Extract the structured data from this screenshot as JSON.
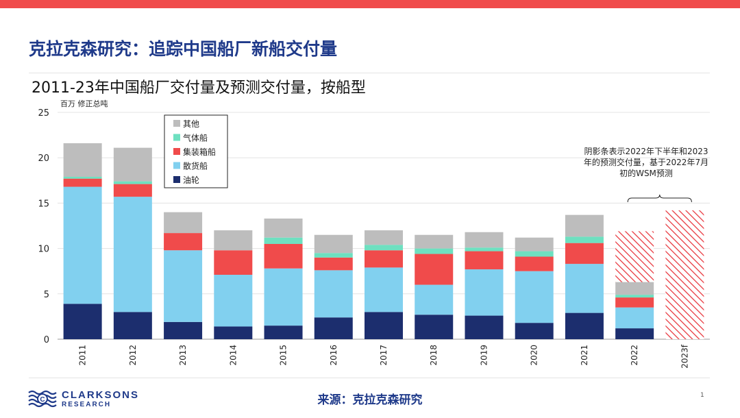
{
  "slide_title": "克拉克森研究：追踪中国船厂新船交付量",
  "page_number": "1",
  "source_text": "来源：克拉克森研究",
  "logo": {
    "line1": "CLARKSONS",
    "line2": "RESEARCH"
  },
  "colors": {
    "top_bar": "#f04b4b",
    "title": "#1f3a8a",
    "tanker": "#1c2e6e",
    "bulk": "#81d0ef",
    "container": "#f04b4b",
    "gas": "#6ee0c0",
    "other": "#bdbdbd",
    "forecast_hatch": "#e8333a"
  },
  "chart_data": {
    "type": "bar",
    "stacked": true,
    "title": "2011-23年中国船厂交付量及预测交付量，按船型",
    "ylabel": "百万 修正总吨",
    "ylim": [
      0,
      25
    ],
    "yticks": [
      0,
      5,
      10,
      15,
      20,
      25
    ],
    "grid": true,
    "legend_position": "top-left",
    "categories": [
      "2011",
      "2012",
      "2013",
      "2014",
      "2015",
      "2016",
      "2017",
      "2018",
      "2019",
      "2020",
      "2021",
      "2022",
      "2023f"
    ],
    "series": [
      {
        "name": "油轮",
        "color_key": "tanker",
        "values": [
          3.9,
          3.0,
          1.9,
          1.4,
          1.5,
          2.4,
          3.0,
          2.7,
          2.6,
          1.8,
          2.9,
          1.2,
          null
        ]
      },
      {
        "name": "散货船",
        "color_key": "bulk",
        "values": [
          12.9,
          12.7,
          7.9,
          5.7,
          6.3,
          5.2,
          4.9,
          3.3,
          5.1,
          5.7,
          5.4,
          2.3,
          null
        ]
      },
      {
        "name": "集装箱船",
        "color_key": "container",
        "values": [
          0.9,
          1.4,
          1.9,
          2.7,
          2.7,
          1.4,
          1.9,
          3.4,
          2.0,
          1.6,
          2.3,
          1.1,
          null
        ]
      },
      {
        "name": "气体船",
        "color_key": "gas",
        "values": [
          0.2,
          0.3,
          0.0,
          0.0,
          0.7,
          0.5,
          0.6,
          0.6,
          0.4,
          0.6,
          0.7,
          0.3,
          null
        ]
      },
      {
        "name": "其他",
        "color_key": "other",
        "values": [
          3.7,
          3.7,
          2.3,
          2.2,
          2.1,
          2.0,
          1.6,
          1.5,
          1.7,
          1.5,
          2.4,
          1.4,
          null
        ]
      }
    ],
    "forecast": {
      "description": "阴影条表示2022年下半年和2023年的预测交付量，基于2022年7月初的WSM预测",
      "bars": [
        {
          "category": "2022",
          "from": 6.3,
          "to": 11.9
        },
        {
          "category": "2023f",
          "from": 0,
          "to": 14.2
        }
      ]
    },
    "annotation": "阴影条表示2022年下半年和2023年的预测交付量，基于2022年7月初的WSM预测"
  }
}
